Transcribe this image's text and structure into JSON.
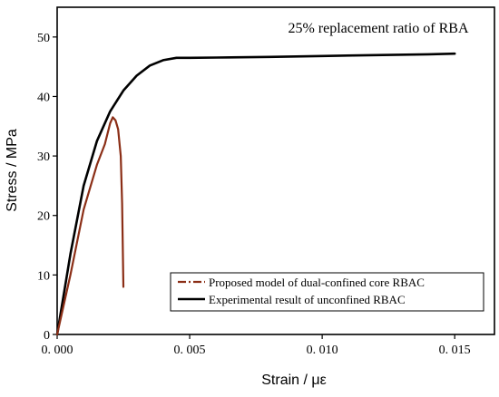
{
  "chart_data": {
    "type": "line",
    "title": "25% replacement ratio of RBA",
    "xlabel": "Strain / με",
    "ylabel": "Stress / MPa",
    "xlim": [
      0,
      0.0165
    ],
    "ylim": [
      0,
      55
    ],
    "x_ticks": [
      0,
      0.005,
      0.01,
      0.015
    ],
    "x_tick_labels": [
      "0. 000",
      "0. 005",
      "0. 010",
      "0. 015"
    ],
    "y_ticks": [
      0,
      10,
      20,
      30,
      40,
      50
    ],
    "y_tick_labels": [
      "0",
      "10",
      "20",
      "30",
      "40",
      "50"
    ],
    "grid": false,
    "legend_position": "bottom-right",
    "colors": {
      "proposed_model": "#8b2e16",
      "experimental": "#000000",
      "axes": "#000000"
    },
    "series": [
      {
        "name": "Experimental result of unconfined RBAC",
        "style": "solid",
        "x": [
          0,
          0.0005,
          0.001,
          0.0015,
          0.002,
          0.0025,
          0.003,
          0.0035,
          0.004,
          0.0045,
          0.005,
          0.006,
          0.008,
          0.01,
          0.012,
          0.014,
          0.015
        ],
        "y": [
          0,
          13.5,
          25,
          32.5,
          37.5,
          41,
          43.5,
          45.2,
          46.1,
          46.5,
          46.5,
          46.55,
          46.65,
          46.8,
          46.95,
          47.1,
          47.2
        ]
      },
      {
        "name": "Proposed model of dual-confined core RBAC",
        "style": "dash-dot",
        "x": [
          0,
          0.0005,
          0.001,
          0.0015,
          0.0018,
          0.002,
          0.0021,
          0.0022,
          0.0023,
          0.0024,
          0.00245,
          0.00248,
          0.0025
        ],
        "y": [
          0,
          10,
          21,
          28.5,
          32,
          35.5,
          36.5,
          36,
          34.5,
          30,
          22,
          14,
          8
        ]
      }
    ]
  }
}
